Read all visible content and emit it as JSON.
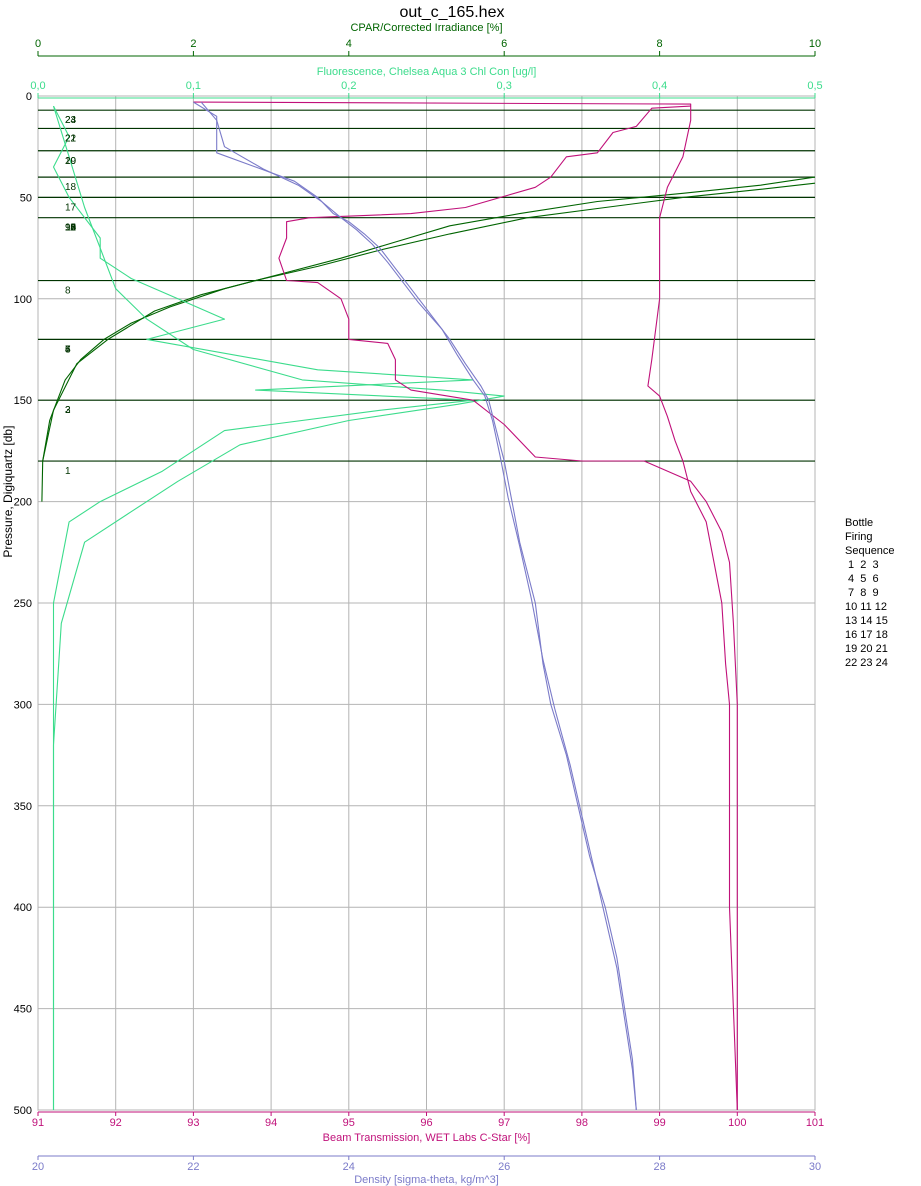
{
  "chart_data": {
    "type": "line",
    "title": "out_c_165.hex",
    "y_axis": {
      "label": "Pressure, Digiquartz [db]",
      "range": [
        0,
        500
      ],
      "ticks": [
        "0",
        "50",
        "100",
        "150",
        "200",
        "250",
        "300",
        "350",
        "400",
        "450",
        "500"
      ],
      "inverted": true,
      "grid": true
    },
    "top_axes": [
      {
        "label": "CPAR/Corrected Irradiance [%]",
        "range": [
          0,
          10
        ],
        "ticks": [
          "0",
          "2",
          "4",
          "6",
          "8",
          "10"
        ],
        "color": "#006400"
      },
      {
        "label": "Fluorescence, Chelsea Aqua 3 Chl Con [ug/l]",
        "range": [
          0,
          0.5
        ],
        "ticks": [
          "0,0",
          "0,1",
          "0,2",
          "0,3",
          "0,4",
          "0,5"
        ],
        "color": "#3cdc8c"
      }
    ],
    "bottom_axes": [
      {
        "label": "Beam Transmission, WET Labs C-Star [%]",
        "range": [
          91,
          101
        ],
        "ticks": [
          "91",
          "92",
          "93",
          "94",
          "95",
          "96",
          "97",
          "98",
          "99",
          "100",
          "101"
        ],
        "color": "#c0117a"
      },
      {
        "label": "Density [sigma-theta, kg/m^3]",
        "range": [
          20,
          30
        ],
        "ticks": [
          "20",
          "22",
          "24",
          "26",
          "28",
          "30"
        ],
        "color": "#7b7bc9"
      }
    ],
    "bottle_firings": [
      {
        "bottle": "1",
        "pressure": 180
      },
      {
        "bottle": "2",
        "pressure": 150
      },
      {
        "bottle": "3",
        "pressure": 150
      },
      {
        "bottle": "4",
        "pressure": 120
      },
      {
        "bottle": "5",
        "pressure": 120
      },
      {
        "bottle": "6",
        "pressure": 120
      },
      {
        "bottle": "7",
        "pressure": 120
      },
      {
        "bottle": "8",
        "pressure": 91
      },
      {
        "bottle": "9",
        "pressure": 60
      },
      {
        "bottle": "10",
        "pressure": 60
      },
      {
        "bottle": "11",
        "pressure": 60
      },
      {
        "bottle": "12",
        "pressure": 60
      },
      {
        "bottle": "13",
        "pressure": 60
      },
      {
        "bottle": "14",
        "pressure": 60
      },
      {
        "bottle": "15",
        "pressure": 60
      },
      {
        "bottle": "16",
        "pressure": 60
      },
      {
        "bottle": "17",
        "pressure": 50
      },
      {
        "bottle": "18",
        "pressure": 40
      },
      {
        "bottle": "19",
        "pressure": 27
      },
      {
        "bottle": "20",
        "pressure": 27
      },
      {
        "bottle": "21",
        "pressure": 16
      },
      {
        "bottle": "22",
        "pressure": 16
      },
      {
        "bottle": "23",
        "pressure": 7
      },
      {
        "bottle": "24",
        "pressure": 7
      }
    ],
    "series": [
      {
        "axis": "CPAR/Corrected Irradiance [%]",
        "color": "#006400",
        "points": [
          [
            0.05,
            200
          ],
          [
            0.06,
            180
          ],
          [
            0.15,
            160
          ],
          [
            0.25,
            150
          ],
          [
            0.35,
            140
          ],
          [
            0.55,
            130
          ],
          [
            0.85,
            120
          ],
          [
            1.2,
            112
          ],
          [
            1.7,
            104
          ],
          [
            2.4,
            95
          ],
          [
            3.1,
            88
          ],
          [
            3.9,
            80
          ],
          [
            4.6,
            72
          ],
          [
            5.3,
            64
          ],
          [
            6.2,
            58
          ],
          [
            7.2,
            52
          ],
          [
            8.3,
            48
          ],
          [
            9.3,
            44
          ],
          [
            10,
            40
          ]
        ]
      },
      {
        "axis": "CPAR/Corrected Irradiance [%]",
        "color": "#006400",
        "points": [
          [
            0.06,
            180
          ],
          [
            0.2,
            155
          ],
          [
            0.5,
            132
          ],
          [
            0.9,
            120
          ],
          [
            1.5,
            106
          ],
          [
            2.1,
            98
          ],
          [
            2.8,
            91
          ],
          [
            3.6,
            84
          ],
          [
            4.4,
            76
          ],
          [
            5.3,
            68
          ],
          [
            6.3,
            60
          ],
          [
            7.3,
            55
          ],
          [
            8.3,
            50
          ],
          [
            9.3,
            46
          ],
          [
            10,
            43
          ]
        ]
      },
      {
        "axis": "Fluorescence, Chelsea Aqua 3 Chl Con [ug/l]",
        "color": "#3cdc8c",
        "points": [
          [
            0.01,
            5
          ],
          [
            0.02,
            20
          ],
          [
            0.01,
            35
          ],
          [
            0.02,
            50
          ],
          [
            0.03,
            60
          ],
          [
            0.04,
            70
          ],
          [
            0.04,
            80
          ],
          [
            0.06,
            90
          ],
          [
            0.09,
            100
          ],
          [
            0.12,
            110
          ],
          [
            0.07,
            120
          ],
          [
            0.18,
            135
          ],
          [
            0.28,
            140
          ],
          [
            0.14,
            145
          ],
          [
            0.28,
            150
          ],
          [
            0.22,
            155
          ],
          [
            0.12,
            165
          ],
          [
            0.08,
            185
          ],
          [
            0.04,
            200
          ],
          [
            0.02,
            210
          ],
          [
            0.01,
            250
          ],
          [
            0.01,
            300
          ],
          [
            0.01,
            350
          ],
          [
            0.01,
            400
          ],
          [
            0.01,
            450
          ],
          [
            0.01,
            500
          ]
        ]
      },
      {
        "axis": "Fluorescence, Chelsea Aqua 3 Chl Con [ug/l]",
        "color": "#3cdc8c",
        "points": [
          [
            0.01,
            5
          ],
          [
            0.02,
            30
          ],
          [
            0.03,
            55
          ],
          [
            0.04,
            75
          ],
          [
            0.05,
            95
          ],
          [
            0.07,
            110
          ],
          [
            0.1,
            125
          ],
          [
            0.17,
            140
          ],
          [
            0.26,
            145
          ],
          [
            0.3,
            148
          ],
          [
            0.27,
            152
          ],
          [
            0.2,
            160
          ],
          [
            0.13,
            172
          ],
          [
            0.09,
            190
          ],
          [
            0.06,
            205
          ],
          [
            0.03,
            220
          ],
          [
            0.015,
            260
          ],
          [
            0.01,
            320
          ],
          [
            0.01,
            400
          ],
          [
            0.01,
            500
          ]
        ]
      },
      {
        "axis": "Beam Transmission, WET Labs C-Star [%]",
        "color": "#c0117a",
        "points": [
          [
            93.0,
            3
          ],
          [
            99.4,
            4
          ],
          [
            99.4,
            12
          ],
          [
            99.3,
            30
          ],
          [
            99.1,
            45
          ],
          [
            99.0,
            60
          ],
          [
            99.0,
            75
          ],
          [
            99.0,
            85
          ],
          [
            99.0,
            100
          ],
          [
            98.95,
            115
          ],
          [
            98.9,
            130
          ],
          [
            98.85,
            143
          ],
          [
            99.0,
            148
          ],
          [
            99.1,
            158
          ],
          [
            99.2,
            170
          ],
          [
            99.3,
            180
          ],
          [
            99.4,
            195
          ],
          [
            99.6,
            210
          ],
          [
            99.7,
            230
          ],
          [
            99.8,
            250
          ],
          [
            99.85,
            280
          ],
          [
            99.9,
            300
          ],
          [
            99.9,
            350
          ],
          [
            99.9,
            400
          ],
          [
            99.95,
            450
          ],
          [
            100.0,
            500
          ]
        ]
      },
      {
        "axis": "Beam Transmission, WET Labs C-Star [%]",
        "color": "#c0117a",
        "points": [
          [
            99.4,
            5
          ],
          [
            98.9,
            6
          ],
          [
            98.7,
            15
          ],
          [
            98.4,
            18
          ],
          [
            98.2,
            28
          ],
          [
            97.8,
            30
          ],
          [
            97.6,
            40
          ],
          [
            97.4,
            45
          ],
          [
            96.5,
            55
          ],
          [
            95.8,
            58
          ],
          [
            94.5,
            60
          ],
          [
            94.2,
            62
          ],
          [
            94.2,
            70
          ],
          [
            94.1,
            80
          ],
          [
            94.2,
            91
          ],
          [
            94.6,
            92
          ],
          [
            94.9,
            100
          ],
          [
            95.0,
            110
          ],
          [
            95.0,
            120
          ],
          [
            95.5,
            122
          ],
          [
            95.6,
            130
          ],
          [
            95.6,
            140
          ],
          [
            95.8,
            145
          ],
          [
            96.6,
            150
          ],
          [
            97.0,
            162
          ],
          [
            97.4,
            178
          ],
          [
            98.0,
            180
          ],
          [
            98.8,
            180
          ],
          [
            99.4,
            190
          ],
          [
            99.6,
            200
          ],
          [
            99.8,
            215
          ],
          [
            99.9,
            230
          ],
          [
            99.95,
            260
          ],
          [
            100.0,
            300
          ],
          [
            100.0,
            360
          ],
          [
            100.0,
            420
          ],
          [
            100.0,
            480
          ],
          [
            100.0,
            500
          ]
        ]
      },
      {
        "axis": "Density [sigma-theta, kg/m^3]",
        "color": "#7b7bc9",
        "points": [
          [
            22.0,
            3
          ],
          [
            22.3,
            10
          ],
          [
            22.3,
            20
          ],
          [
            22.3,
            28
          ],
          [
            22.8,
            35
          ],
          [
            23.3,
            42
          ],
          [
            23.6,
            50
          ],
          [
            23.8,
            58
          ],
          [
            24.0,
            62
          ],
          [
            24.2,
            68
          ],
          [
            24.4,
            75
          ],
          [
            24.6,
            85
          ],
          [
            24.8,
            95
          ],
          [
            25.0,
            105
          ],
          [
            25.3,
            120
          ],
          [
            25.5,
            132
          ],
          [
            25.7,
            143
          ],
          [
            25.8,
            150
          ],
          [
            25.9,
            165
          ],
          [
            26.0,
            180
          ],
          [
            26.1,
            200
          ],
          [
            26.2,
            220
          ],
          [
            26.4,
            250
          ],
          [
            26.5,
            280
          ],
          [
            26.6,
            300
          ],
          [
            26.8,
            325
          ],
          [
            26.95,
            350
          ],
          [
            27.1,
            375
          ],
          [
            27.3,
            400
          ],
          [
            27.45,
            425
          ],
          [
            27.55,
            450
          ],
          [
            27.65,
            475
          ],
          [
            27.7,
            500
          ]
        ]
      },
      {
        "axis": "Density [sigma-theta, kg/m^3]",
        "color": "#7b7bc9",
        "points": [
          [
            22.1,
            3
          ],
          [
            22.3,
            12
          ],
          [
            22.4,
            25
          ],
          [
            22.9,
            36
          ],
          [
            23.35,
            44
          ],
          [
            23.65,
            52
          ],
          [
            23.9,
            60
          ],
          [
            24.1,
            66
          ],
          [
            24.3,
            73
          ],
          [
            24.5,
            82
          ],
          [
            24.7,
            92
          ],
          [
            24.9,
            102
          ],
          [
            25.2,
            115
          ],
          [
            25.4,
            128
          ],
          [
            25.6,
            140
          ],
          [
            25.75,
            148
          ],
          [
            25.85,
            160
          ],
          [
            25.95,
            178
          ],
          [
            26.05,
            198
          ],
          [
            26.2,
            222
          ],
          [
            26.35,
            248
          ],
          [
            26.5,
            278
          ],
          [
            26.65,
            302
          ],
          [
            26.85,
            330
          ],
          [
            27.0,
            355
          ],
          [
            27.15,
            380
          ],
          [
            27.3,
            405
          ],
          [
            27.45,
            430
          ],
          [
            27.55,
            455
          ],
          [
            27.65,
            480
          ],
          [
            27.7,
            500
          ]
        ]
      }
    ]
  },
  "legend": {
    "lines": [
      "Bottle",
      "Firing",
      "Sequence",
      " 1  2  3",
      " 4  5  6",
      " 7  8  9",
      "10 11 12",
      "13 14 15",
      "16 17 18",
      "19 20 21",
      "22 23 24"
    ]
  }
}
